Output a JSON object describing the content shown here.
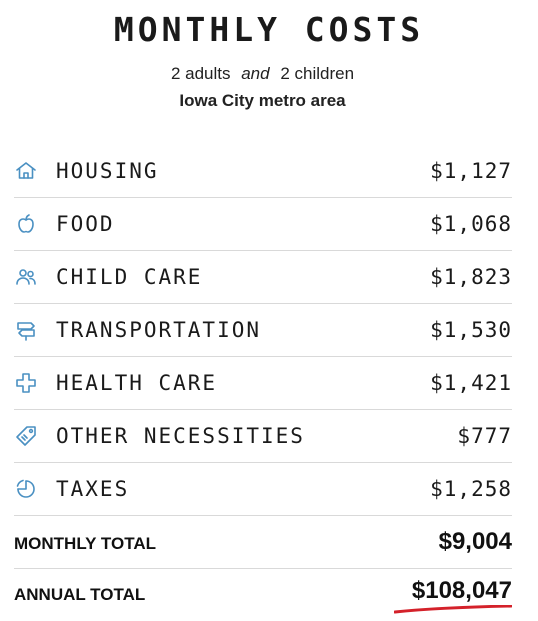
{
  "header": {
    "title": "MONTHLY COSTS",
    "adults_count": "2 adults",
    "connector": "and",
    "children_count": "2 children",
    "location": "Iowa City metro area"
  },
  "colors": {
    "icon": "#4a90c2",
    "divider": "#d9d9d9",
    "underline": "#d4212a"
  },
  "costs": [
    {
      "label": "HOUSING",
      "amount": "$1,127",
      "icon": "house-icon"
    },
    {
      "label": "FOOD",
      "amount": "$1,068",
      "icon": "apple-icon"
    },
    {
      "label": "CHILD CARE",
      "amount": "$1,823",
      "icon": "people-icon"
    },
    {
      "label": "TRANSPORTATION",
      "amount": "$1,530",
      "icon": "signpost-icon"
    },
    {
      "label": "HEALTH CARE",
      "amount": "$1,421",
      "icon": "medical-cross-icon"
    },
    {
      "label": "OTHER NECESSITIES",
      "amount": "$777",
      "icon": "tag-icon"
    },
    {
      "label": "TAXES",
      "amount": "$1,258",
      "icon": "pie-chart-icon"
    }
  ],
  "totals": {
    "monthly_label": "MONTHLY TOTAL",
    "monthly_value": "$9,004",
    "annual_label": "ANNUAL TOTAL",
    "annual_value": "$108,047"
  }
}
